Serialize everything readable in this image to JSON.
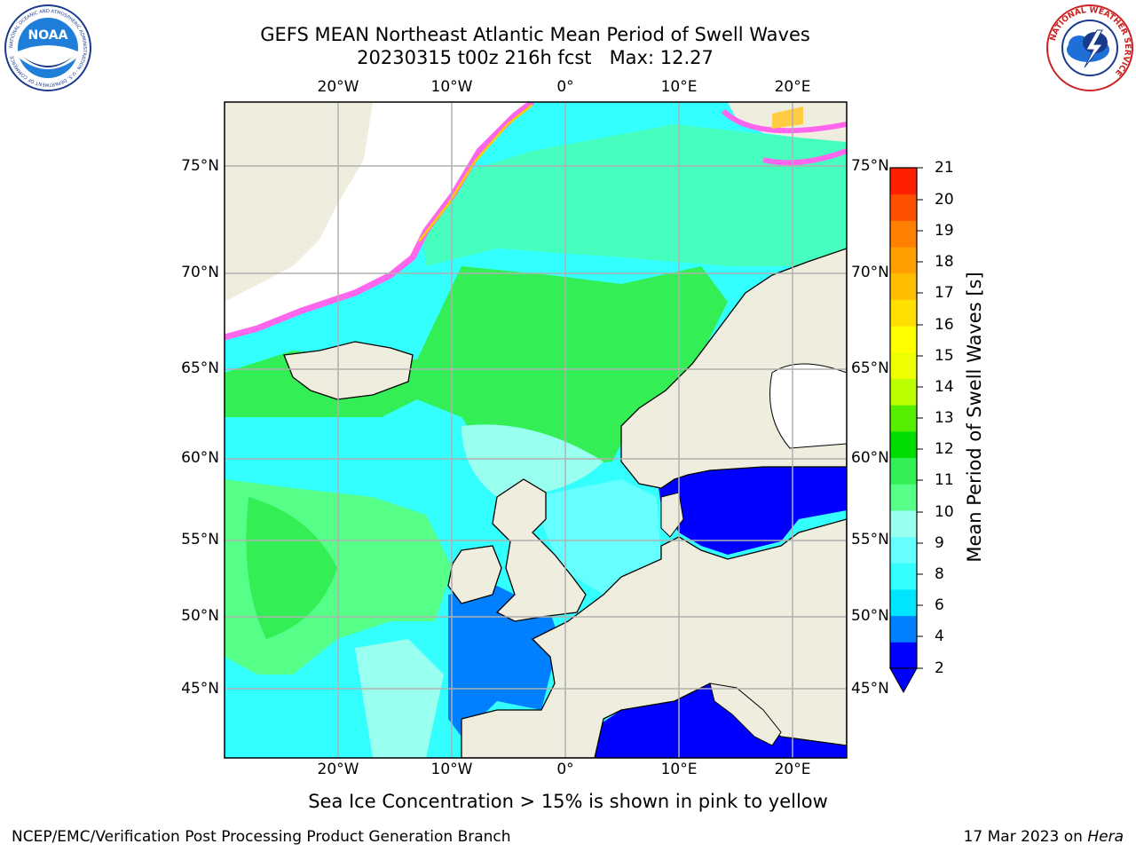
{
  "header": {
    "title_line1": "GEFS MEAN Northeast Atlantic Mean Period of Swell Waves",
    "title_line2": "20230315 t00z 216h fcst   Max: 12.27"
  },
  "logos": {
    "noaa_text": "NOAA",
    "noaa_ring_text": "NATIONAL OCEANIC AND ATMOSPHERIC ADMINISTRATION · U.S. DEPARTMENT OF COMMERCE",
    "nws_ring_text": "NATIONAL WEATHER SERVICE"
  },
  "map": {
    "lon_ticks_top": [
      "20°W",
      "10°W",
      "0°",
      "10°E",
      "20°E"
    ],
    "lon_ticks_bottom": [
      "20°W",
      "10°W",
      "0°",
      "10°E",
      "20°E"
    ],
    "lat_ticks_left": [
      "75°N",
      "70°N",
      "65°N",
      "60°N",
      "55°N",
      "50°N",
      "45°N"
    ],
    "lat_ticks_right": [
      "75°N",
      "70°N",
      "65°N",
      "60°N",
      "55°N",
      "50°N",
      "45°N"
    ],
    "colors": {
      "land": "#efedde",
      "ice_white": "#ffffff",
      "ice_edge": "#ff66ee",
      "grid": "#b0b0b0"
    }
  },
  "colorbar": {
    "label": "Mean Period of Swell Waves [s]",
    "ticks": [
      "21",
      "20",
      "19",
      "18",
      "17",
      "16",
      "15",
      "14",
      "13",
      "12",
      "11",
      "10",
      "9",
      "8",
      "6",
      "4",
      "2"
    ],
    "colors_bottom_to_top": [
      "#0000ff",
      "#0080ff",
      "#00e5ff",
      "#33ffff",
      "#66ffff",
      "#99ffee",
      "#55ff88",
      "#33ee55",
      "#00dd00",
      "#55ee00",
      "#bbff00",
      "#eeff00",
      "#ffff00",
      "#ffe000",
      "#ffbf00",
      "#ff9f00",
      "#ff7f00",
      "#ff5000",
      "#ff2000"
    ]
  },
  "note": "Sea Ice Concentration > 15% is shown in pink to yellow",
  "footer": {
    "left": "NCEP/EMC/Verification Post Processing Product Generation Branch",
    "date": "17 Mar 2023 on",
    "machine": "Hera"
  }
}
